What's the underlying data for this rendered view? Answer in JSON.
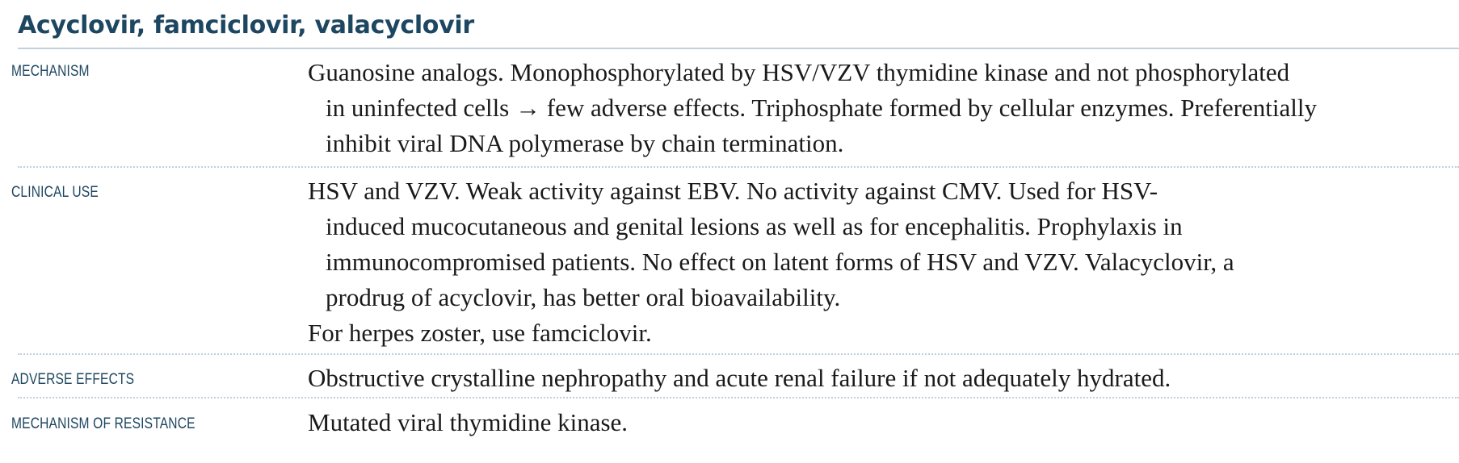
{
  "title": "Acyclovir, famciclovir, valacyclovir",
  "rows": [
    {
      "label": "MECHANISM",
      "lines": [
        "Guanosine analogs. Monophosphorylated by HSV/VZV thymidine kinase and not phosphorylated",
        "in uninfected cells → few adverse effects. Triphosphate formed by cellular enzymes. Preferentially",
        "inhibit viral DNA polymerase by chain termination."
      ]
    },
    {
      "label": "CLINICAL USE",
      "lines": [
        "HSV and VZV. Weak activity against EBV. No activity against CMV. Used for HSV-",
        "induced mucocutaneous and genital lesions as well as for encephalitis. Prophylaxis in",
        "immunocompromised patients. No effect on latent forms of HSV and VZV. Valacyclovir, a",
        "prodrug of acyclovir, has better oral bioavailability."
      ],
      "extra": "For herpes zoster, use famciclovir."
    },
    {
      "label": "ADVERSE EFFECTS",
      "lines": [
        "Obstructive crystalline nephropathy and acute renal failure if not adequately hydrated."
      ]
    },
    {
      "label": "MECHANISM OF RESISTANCE",
      "lines": [
        "Mutated viral thymidine kinase."
      ]
    }
  ]
}
